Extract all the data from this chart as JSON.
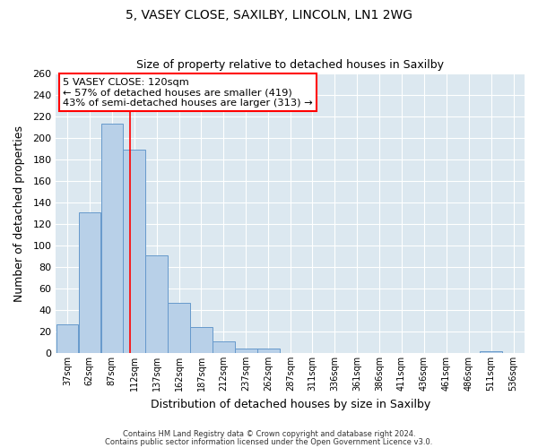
{
  "title1": "5, VASEY CLOSE, SAXILBY, LINCOLN, LN1 2WG",
  "title2": "Size of property relative to detached houses in Saxilby",
  "xlabel": "Distribution of detached houses by size in Saxilby",
  "ylabel": "Number of detached properties",
  "bin_labels": [
    "37sqm",
    "62sqm",
    "87sqm",
    "112sqm",
    "137sqm",
    "162sqm",
    "187sqm",
    "212sqm",
    "237sqm",
    "262sqm",
    "287sqm",
    "311sqm",
    "336sqm",
    "361sqm",
    "386sqm",
    "411sqm",
    "436sqm",
    "461sqm",
    "486sqm",
    "511sqm",
    "536sqm"
  ],
  "bin_left_edges": [
    37,
    62,
    87,
    112,
    137,
    162,
    187,
    212,
    237,
    262,
    287,
    311,
    336,
    361,
    386,
    411,
    436,
    461,
    486,
    511,
    536
  ],
  "bar_values": [
    27,
    131,
    213,
    189,
    91,
    47,
    24,
    11,
    4,
    4,
    0,
    0,
    0,
    0,
    0,
    0,
    0,
    0,
    0,
    2,
    0
  ],
  "bar_color": "#b8d0e8",
  "bar_edge_color": "#6699cc",
  "red_line_x": 120,
  "annotation_line0": "5 VASEY CLOSE: 120sqm",
  "annotation_line1": "← 57% of detached houses are smaller (419)",
  "annotation_line2": "43% of semi-detached houses are larger (313) →",
  "ylim": [
    0,
    260
  ],
  "yticks": [
    0,
    20,
    40,
    60,
    80,
    100,
    120,
    140,
    160,
    180,
    200,
    220,
    240,
    260
  ],
  "footer1": "Contains HM Land Registry data © Crown copyright and database right 2024.",
  "footer2": "Contains public sector information licensed under the Open Government Licence v3.0.",
  "fig_bg_color": "#ffffff",
  "plot_bg_color": "#dce8f0"
}
